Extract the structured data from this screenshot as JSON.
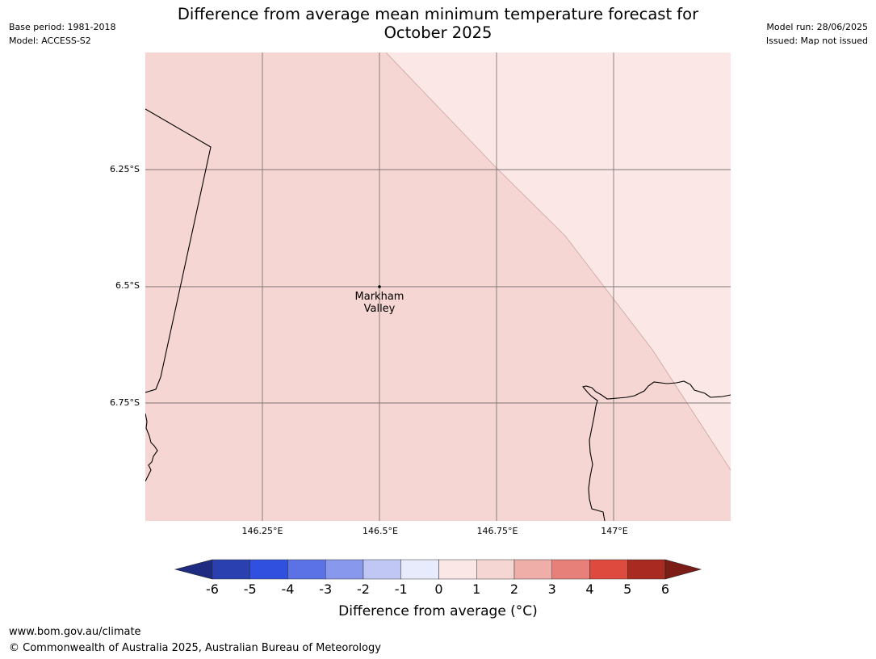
{
  "header": {
    "title_line1": "Difference from average mean minimum temperature forecast for",
    "title_line2": "October 2025",
    "base_period": "Base period: 1981-2018",
    "model": "Model: ACCESS-S2",
    "model_run": "Model run: 28/06/2025",
    "issued": "Issued: Map not issued"
  },
  "map": {
    "lat_labels": [
      "6.25°S",
      "6.5°S",
      "6.75°S"
    ],
    "lon_labels": [
      "146.25°E",
      "146.5°E",
      "146.75°E",
      "147°E"
    ],
    "place": {
      "name_line1": "Markham",
      "name_line2": "Valley",
      "lon": 146.5,
      "lat": -6.5
    },
    "extent": {
      "lon_min": 146.0,
      "lon_max": 147.25,
      "lat_min": -7.0,
      "lat_max": -6.0
    },
    "fill_colors": {
      "category_0_1": "#fbe8e6",
      "category_1_2": "#f5d6d3"
    }
  },
  "colorbar": {
    "ticks": [
      "-6",
      "-5",
      "-4",
      "-3",
      "-2",
      "-1",
      "0",
      "1",
      "2",
      "3",
      "4",
      "5",
      "6"
    ],
    "low_extend_color": "#1f2b80",
    "high_extend_color": "#7b1c16",
    "colors": [
      "#2a3fb0",
      "#3050e0",
      "#5a72e6",
      "#8898ec",
      "#c0c7f4",
      "#e8ebfc",
      "#fbe8e6",
      "#f5d6d3",
      "#f0aea8",
      "#e8807a",
      "#de4a3e",
      "#a82a20"
    ],
    "label": "Difference from average (°C)"
  },
  "footer": {
    "website": "www.bom.gov.au/climate",
    "copyright": "© Commonwealth of Australia 2025, Australian Bureau of Meteorology"
  }
}
